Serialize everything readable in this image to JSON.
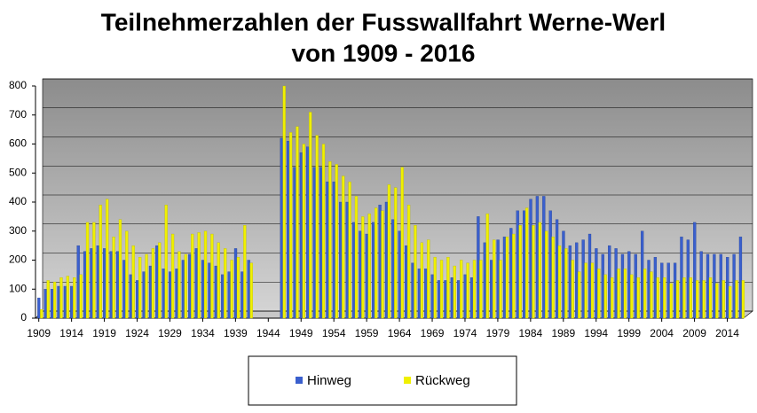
{
  "chart_data": {
    "type": "bar",
    "title": [
      "Teilnehmerzahlen der Fusswallfahrt Werne-Werl",
      "von 1909 - 2016"
    ],
    "x": [
      1909,
      1910,
      1911,
      1912,
      1913,
      1914,
      1915,
      1916,
      1917,
      1918,
      1919,
      1920,
      1921,
      1922,
      1923,
      1924,
      1925,
      1926,
      1927,
      1928,
      1929,
      1930,
      1931,
      1932,
      1933,
      1934,
      1935,
      1936,
      1937,
      1938,
      1939,
      1940,
      1941,
      1942,
      1943,
      1944,
      1945,
      1946,
      1947,
      1948,
      1949,
      1950,
      1951,
      1952,
      1953,
      1954,
      1955,
      1956,
      1957,
      1958,
      1959,
      1960,
      1961,
      1962,
      1963,
      1964,
      1965,
      1966,
      1967,
      1968,
      1969,
      1970,
      1971,
      1972,
      1973,
      1974,
      1975,
      1976,
      1977,
      1978,
      1979,
      1980,
      1981,
      1982,
      1983,
      1984,
      1985,
      1986,
      1987,
      1988,
      1989,
      1990,
      1991,
      1992,
      1993,
      1994,
      1995,
      1996,
      1997,
      1998,
      1999,
      2000,
      2001,
      2002,
      2003,
      2004,
      2005,
      2006,
      2007,
      2008,
      2009,
      2010,
      2011,
      2012,
      2013,
      2014,
      2015,
      2016
    ],
    "series": [
      {
        "name": "Hinweg",
        "color": "#3a5fcd",
        "values": [
          70,
          100,
          100,
          110,
          110,
          110,
          250,
          230,
          240,
          250,
          240,
          230,
          230,
          200,
          150,
          130,
          160,
          180,
          250,
          170,
          160,
          170,
          200,
          220,
          240,
          200,
          190,
          180,
          150,
          160,
          240,
          160,
          200,
          null,
          null,
          null,
          null,
          620,
          610,
          520,
          570,
          590,
          520,
          520,
          470,
          470,
          400,
          400,
          330,
          300,
          290,
          330,
          390,
          400,
          340,
          300,
          250,
          190,
          170,
          170,
          150,
          130,
          130,
          140,
          130,
          150,
          140,
          350,
          260,
          200,
          270,
          280,
          310,
          370,
          370,
          410,
          420,
          420,
          370,
          340,
          300,
          250,
          260,
          270,
          290,
          240,
          220,
          250,
          240,
          220,
          230,
          220,
          300,
          200,
          210,
          190,
          190,
          190,
          280,
          270,
          330,
          230,
          220,
          220,
          220,
          210,
          220,
          280
        ]
      },
      {
        "name": "Rückweg",
        "color": "#f0f000",
        "values": [
          30,
          130,
          125,
          140,
          145,
          140,
          150,
          330,
          330,
          390,
          410,
          280,
          340,
          300,
          250,
          210,
          220,
          240,
          260,
          390,
          290,
          230,
          220,
          290,
          295,
          300,
          290,
          260,
          240,
          200,
          210,
          320,
          190,
          null,
          null,
          null,
          null,
          800,
          640,
          660,
          600,
          710,
          630,
          600,
          540,
          530,
          490,
          470,
          420,
          350,
          360,
          380,
          370,
          460,
          450,
          520,
          390,
          320,
          260,
          270,
          210,
          200,
          210,
          180,
          200,
          190,
          200,
          200,
          360,
          270,
          200,
          280,
          290,
          320,
          380,
          320,
          330,
          300,
          280,
          250,
          240,
          200,
          160,
          190,
          190,
          170,
          150,
          140,
          170,
          170,
          150,
          140,
          170,
          160,
          140,
          140,
          120,
          130,
          140,
          140,
          130,
          130,
          140,
          120,
          130,
          110,
          130,
          130
        ]
      }
    ],
    "xlim": [
      1908.5,
      2016.5
    ],
    "xticks": [
      1909,
      1914,
      1919,
      1924,
      1929,
      1934,
      1939,
      1944,
      1949,
      1954,
      1959,
      1964,
      1969,
      1974,
      1979,
      1984,
      1989,
      1994,
      1999,
      2004,
      2009,
      2014
    ],
    "ylim": [
      0,
      800
    ],
    "yticks": [
      0,
      100,
      200,
      300,
      400,
      500,
      600,
      700,
      800
    ],
    "grid": true
  }
}
